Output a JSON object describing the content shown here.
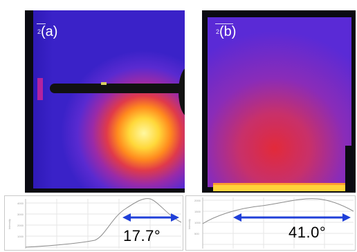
{
  "panels": [
    {
      "id": "a",
      "label": "(a)",
      "superscript": "2"
    },
    {
      "id": "b",
      "label": "(b)",
      "superscript": "2"
    }
  ],
  "profiles": [
    {
      "id": "a",
      "angle": "17.7°"
    },
    {
      "id": "b",
      "angle": "41.0°"
    }
  ],
  "colors": {
    "arrow": "#1f3fd8",
    "curve": "#8a8a8a",
    "background_cold": "#3a1fd0",
    "hot_spot": "#fff04a"
  }
}
